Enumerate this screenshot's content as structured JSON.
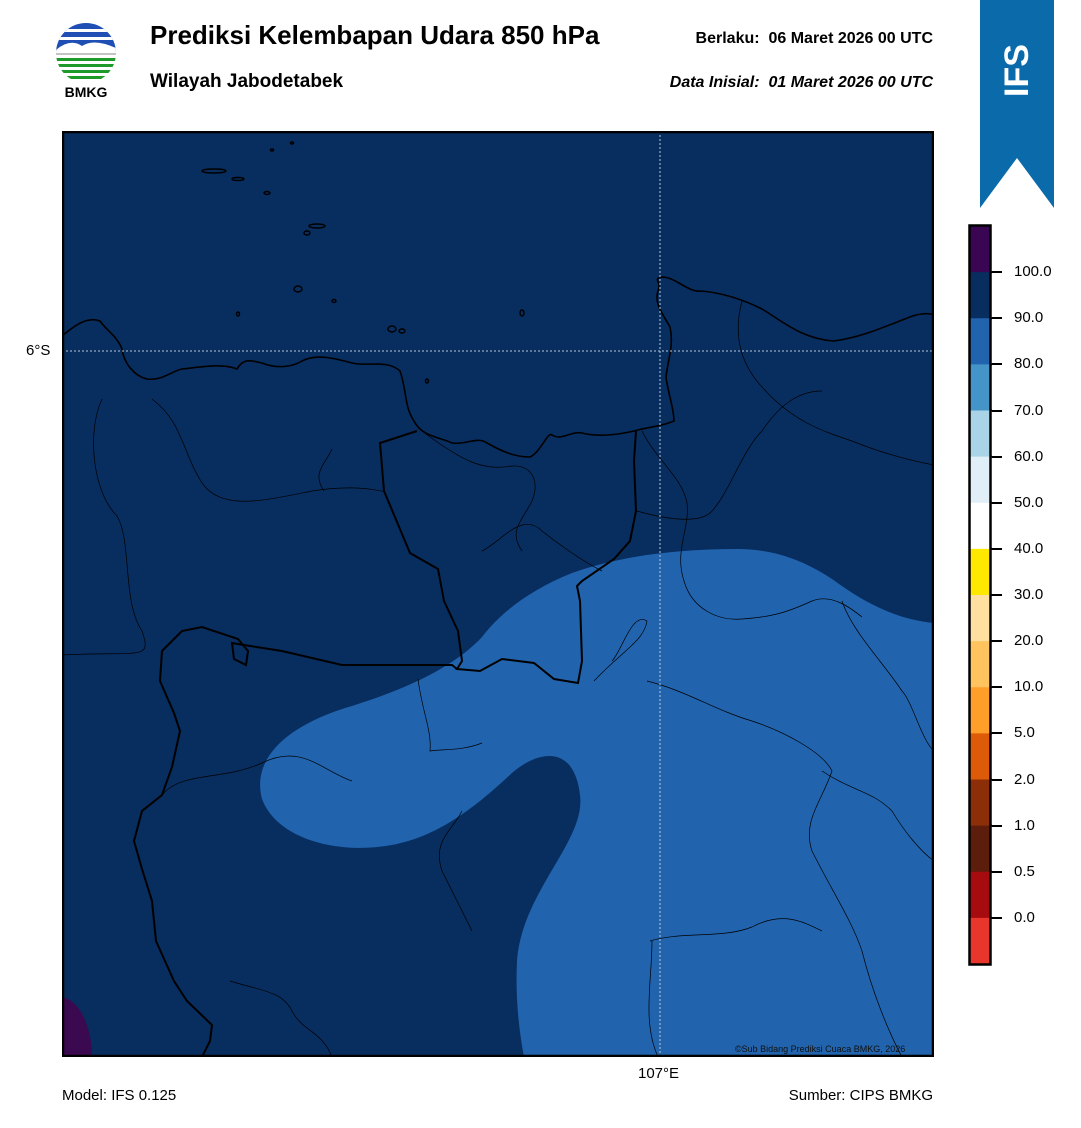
{
  "header": {
    "title": "Prediksi Kelembapan Udara 850 hPa",
    "subtitle": "Wilayah Jabodetabek",
    "valid_label": "Berlaku:",
    "valid_value": "06 Maret 2026 00 UTC",
    "init_label": "Data Inisial:",
    "init_value": "01 Maret 2026 00 UTC"
  },
  "logo": {
    "text": "BMKG",
    "icon": "bmkg-logo-icon"
  },
  "banner": {
    "text": "IFS",
    "color": "#0a6aaa"
  },
  "map": {
    "lat_label": "6°S",
    "lon_label": "107°E",
    "credit": "©Sub Bidang Prediksi Cuaca BMKG, 2026",
    "fill_dark": "#082d5f",
    "fill_mid": "#2163ad",
    "fill_purple": "#3b0950"
  },
  "footer": {
    "model": "Model: IFS 0.125",
    "source": "Sumber: CIPS BMKG"
  },
  "colorbar": {
    "ticks": [
      "100.0",
      "90.0",
      "80.0",
      "70.0",
      "60.0",
      "50.0",
      "40.0",
      "30.0",
      "20.0",
      "10.0",
      "5.0",
      "2.0",
      "1.0",
      "0.5",
      "0.0"
    ],
    "colors": [
      "#3a0653",
      "#082d5f",
      "#2163ad",
      "#4494c8",
      "#a9d4e8",
      "#dfeef7",
      "#ffffff",
      "#ffe800",
      "#ffe0a0",
      "#ffc45e",
      "#ff9f2a",
      "#dd5a08",
      "#8c2f08",
      "#5c1d0c",
      "#a60b10",
      "#e8362c"
    ]
  }
}
